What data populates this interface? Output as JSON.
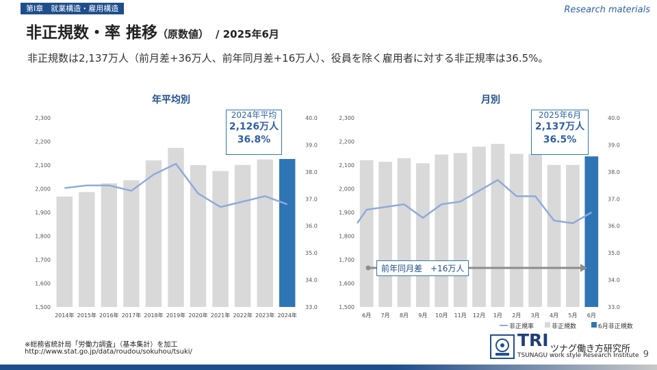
{
  "header": {
    "chapter_tag": "第Ⅰ章　就業構造・雇用構造",
    "research_label": "Research materials",
    "title_main": "非正規数・率 推移",
    "title_sub": "（原数値）",
    "title_date": "/ 2025年6月",
    "summary": "非正規数は2,137万人（前月差+36万人、前年同月差+16万人）、役員を除く雇用者に対する非正規率は36.5%。"
  },
  "colors": {
    "bar_gray": "#d9d9d9",
    "bar_highlight": "#2e75b6",
    "line": "#8eaadb",
    "accent": "#1f4e8c"
  },
  "chart_data": [
    {
      "type": "bar",
      "title": "年平均別",
      "categories": [
        "2014年",
        "2015年",
        "2016年",
        "2017年",
        "2018年",
        "2019年",
        "2020年",
        "2021年",
        "2022年",
        "2023年",
        "2024年"
      ],
      "series": [
        {
          "values": [
            1967,
            1986,
            2023,
            2036,
            2120,
            2173,
            2100,
            2075,
            2101,
            2124,
            2126
          ]
        },
        {
          "values": [
            37.4,
            37.5,
            37.5,
            37.3,
            37.9,
            38.3,
            37.2,
            36.7,
            36.9,
            37.1,
            36.8
          ]
        }
      ],
      "ylim": [
        1500,
        2300
      ],
      "y2lim": [
        33.0,
        40.0
      ],
      "yticks": [
        "1,500",
        "1,600",
        "1,700",
        "1,800",
        "1,900",
        "2,000",
        "2,100",
        "2,200",
        "2,300"
      ],
      "y2ticks": [
        "33.0",
        "34.0",
        "35.0",
        "36.0",
        "37.0",
        "38.0",
        "39.0",
        "40.0"
      ],
      "highlight_index": 10,
      "callout": {
        "line1": "2024年平均",
        "line2": "2,126万人",
        "line3": "36.8%"
      }
    },
    {
      "type": "bar",
      "title": "月別",
      "categories": [
        "6月",
        "7月",
        "8月",
        "9月",
        "10月",
        "11月",
        "12月",
        "1月",
        "2月",
        "3月",
        "4月",
        "5月",
        "6月"
      ],
      "series": [
        {
          "name": "非正規数",
          "values": [
            2121,
            2114,
            2129,
            2108,
            2145,
            2151,
            2178,
            2190,
            2148,
            2148,
            2101,
            2101,
            2137
          ]
        },
        {
          "name": "非正規率",
          "values": [
            36.6,
            36.7,
            36.8,
            36.3,
            36.8,
            36.9,
            37.3,
            37.7,
            37.1,
            37.1,
            36.2,
            36.1,
            36.5
          ]
        }
      ],
      "line_start_value": 36.1,
      "ylim": [
        1500,
        2300
      ],
      "y2lim": [
        33.0,
        40.0
      ],
      "yticks": [
        "1,500",
        "1,600",
        "1,700",
        "1,800",
        "1,900",
        "2,000",
        "2,100",
        "2,200",
        "2,300"
      ],
      "y2ticks": [
        "33.0",
        "34.0",
        "35.0",
        "36.0",
        "37.0",
        "38.0",
        "39.0",
        "40.0"
      ],
      "highlight_index": 12,
      "callout": {
        "line1": "2025年6月",
        "line2": "2,137万人",
        "line3": "36.5%"
      },
      "arrow_label": "前年同月差　+16万人",
      "legend": [
        "非正規率",
        "非正規数",
        "6月非正規数"
      ]
    }
  ],
  "footer": {
    "source": "※総務省統計局「労働力調査」（基本集計）を加工",
    "url": "http://www.stat.go.jp/data/roudou/sokuhou/tsuki/",
    "brand_tri": "TRI",
    "brand_jp": "ツナグ働き方研究所",
    "brand_en": "TSUNAGU work style Research Institute",
    "page": "9"
  }
}
